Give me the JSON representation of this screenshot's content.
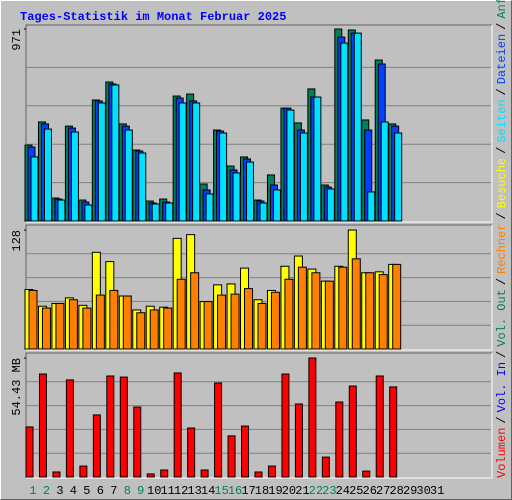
{
  "title": "Tages-Statistik im Monat Februar 2025",
  "legend_separator": "/",
  "chart_data": [
    {
      "type": "bar",
      "series": [
        {
          "name": "Anfragen",
          "color": "#00805c",
          "values": [
            384,
            501,
            116,
            480,
            106,
            612,
            703,
            491,
            359,
            101,
            111,
            632,
            642,
            187,
            460,
            278,
            324,
            106,
            233,
            571,
            496,
            668,
            182,
            971,
            966,
            511,
            814,
            491,
            null,
            null,
            null
          ]
        },
        {
          "name": "Dateien",
          "color": "#0040ff",
          "values": [
            374,
            491,
            111,
            470,
            96,
            607,
            693,
            480,
            354,
            91,
            96,
            622,
            607,
            157,
            455,
            258,
            314,
            101,
            182,
            571,
            460,
            627,
            172,
            930,
            950,
            460,
            794,
            480,
            null,
            null,
            null
          ]
        },
        {
          "name": "Seiten",
          "color": "#00e0ff",
          "values": [
            324,
            465,
            106,
            450,
            81,
            597,
            688,
            460,
            344,
            86,
            91,
            597,
            597,
            137,
            445,
            243,
            298,
            91,
            157,
            561,
            445,
            627,
            162,
            900,
            950,
            147,
            501,
            445,
            null,
            null,
            null
          ]
        }
      ],
      "ylim": [
        0,
        971
      ],
      "yticks": [
        971
      ]
    },
    {
      "type": "bar",
      "series": [
        {
          "name": "Besuche",
          "color": "#ffff00",
          "values": [
            64,
            46,
            49,
            55,
            47,
            104,
            94,
            57,
            42,
            46,
            45,
            119,
            123,
            51,
            69,
            70,
            87,
            53,
            63,
            89,
            100,
            86,
            73,
            89,
            128,
            82,
            83,
            91,
            null,
            null,
            null
          ]
        },
        {
          "name": "Rechner",
          "color": "#ff8000",
          "values": [
            63,
            44,
            49,
            53,
            44,
            58,
            63,
            57,
            39,
            42,
            44,
            75,
            82,
            51,
            58,
            59,
            65,
            49,
            61,
            75,
            88,
            82,
            73,
            88,
            97,
            82,
            80,
            91,
            null,
            null,
            null
          ]
        }
      ],
      "ylim": [
        0,
        128
      ],
      "yticks": [
        128
      ]
    },
    {
      "type": "bar",
      "categories": [
        1,
        2,
        3,
        4,
        5,
        6,
        7,
        8,
        9,
        10,
        11,
        12,
        13,
        14,
        15,
        16,
        17,
        18,
        19,
        20,
        21,
        22,
        23,
        24,
        25,
        26,
        27,
        28,
        29,
        30,
        31
      ],
      "category_colors": [
        "#00805c",
        "#00805c",
        "#000000",
        "#000000",
        "#000000",
        "#000000",
        "#000000",
        "#00805c",
        "#00805c",
        "#000000",
        "#000000",
        "#000000",
        "#000000",
        "#000000",
        "#00805c",
        "#00805c",
        "#000000",
        "#000000",
        "#000000",
        "#000000",
        "#000000",
        "#00805c",
        "#00805c",
        "#000000",
        "#000000",
        "#000000",
        "#000000",
        "#000000",
        "#000000",
        "#000000",
        "#000000"
      ],
      "series": [
        {
          "name": "Volumen",
          "color": "#ff0000",
          "values": [
            22.9,
            47.1,
            2.3,
            44.4,
            5.0,
            28.4,
            46.2,
            45.7,
            32.0,
            1.4,
            3.2,
            47.6,
            22.4,
            3.2,
            43.0,
            18.8,
            23.3,
            2.3,
            5.0,
            47.1,
            33.4,
            54.43,
            9.1,
            34.3,
            41.6,
            2.7,
            46.2,
            41.2,
            null,
            null,
            null
          ]
        }
      ],
      "legend_extra": [
        {
          "name": "Vol. In",
          "color": "#0000ff"
        },
        {
          "name": "Vol. Out",
          "color": "#00805c"
        }
      ],
      "ylim": [
        0,
        54.43
      ],
      "yticks": [
        {
          "value": 54.43,
          "label": "54.43 MB"
        }
      ]
    }
  ]
}
